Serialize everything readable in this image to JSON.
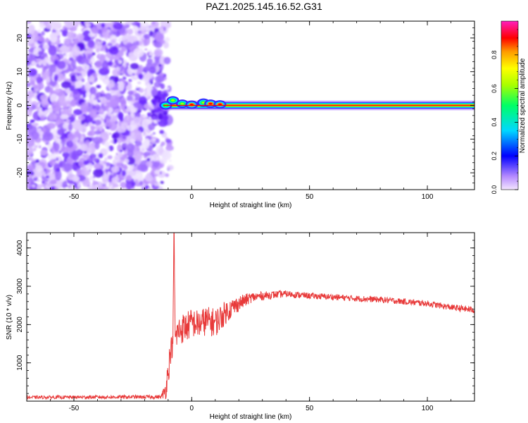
{
  "title": "PAZ1.2025.145.16.52.G31",
  "chart_data": [
    {
      "type": "heatmap",
      "xlabel": "Height of straight line (km)",
      "ylabel": "Frequency (Hz)",
      "xlim": [
        -70,
        120
      ],
      "ylim": [
        -25,
        25
      ],
      "x_ticks": [
        -50,
        0,
        50,
        100
      ],
      "y_ticks": [
        -20,
        -10,
        0,
        10,
        20
      ],
      "x_tick_labels": [
        "-50",
        "0",
        "50",
        "100"
      ],
      "y_tick_labels": [
        "-20",
        "-10",
        "0",
        "10",
        "20"
      ],
      "colorbar": {
        "label": "Normalized spectral amplitude",
        "range": [
          0,
          1
        ],
        "ticks": [
          0.0,
          0.2,
          0.4,
          0.6,
          0.8
        ],
        "tick_labels": [
          "0.0",
          "0.2",
          "0.4",
          "0.6",
          "0.8"
        ],
        "colormap": "rainbow"
      },
      "noise_region_x": [
        -70,
        -12
      ],
      "line": {
        "x_start": -12,
        "x_end": 120,
        "frequency": 0,
        "amplitude": 0.85,
        "blobs": [
          {
            "x": -11,
            "f": 0,
            "a": 0.45
          },
          {
            "x": -8,
            "f": 1.5,
            "a": 0.5
          },
          {
            "x": -4,
            "f": 0.5,
            "a": 0.7
          },
          {
            "x": 0,
            "f": 0.2,
            "a": 0.8
          },
          {
            "x": 5,
            "f": 0.8,
            "a": 0.6
          },
          {
            "x": 8,
            "f": 0.5,
            "a": 0.85
          },
          {
            "x": 12,
            "f": 0.3,
            "a": 0.8
          }
        ]
      },
      "grid": false
    },
    {
      "type": "line",
      "xlabel": "Height of straight line (km)",
      "ylabel": "SNR (10 * v/v)",
      "xlim": [
        -70,
        120
      ],
      "ylim": [
        0,
        4400
      ],
      "x_ticks": [
        -50,
        0,
        50,
        100
      ],
      "y_ticks": [
        1000,
        2000,
        3000,
        4000
      ],
      "x_tick_labels": [
        "-50",
        "0",
        "50",
        "100"
      ],
      "y_tick_labels": [
        "1000",
        "2000",
        "3000",
        "4000"
      ],
      "color": "#e83a3a",
      "envelope": {
        "x": [
          -70,
          -13,
          -11,
          -10,
          -9,
          -8,
          -7.5,
          -7,
          -6,
          -4,
          -2,
          0,
          3,
          6,
          10,
          15,
          20,
          25,
          30,
          35,
          40,
          50,
          60,
          70,
          80,
          90,
          100,
          110,
          120
        ],
        "y": [
          100,
          110,
          300,
          800,
          1300,
          1500,
          4400,
          1600,
          1800,
          1900,
          1950,
          2050,
          2000,
          2100,
          2050,
          2350,
          2550,
          2700,
          2750,
          2780,
          2800,
          2750,
          2720,
          2680,
          2650,
          2600,
          2550,
          2450,
          2380
        ],
        "noise": [
          40,
          50,
          250,
          400,
          350,
          300,
          50,
          350,
          400,
          400,
          400,
          380,
          380,
          380,
          380,
          300,
          200,
          140,
          110,
          100,
          90,
          80,
          80,
          80,
          80,
          80,
          80,
          80,
          90
        ]
      },
      "grid": false
    }
  ]
}
